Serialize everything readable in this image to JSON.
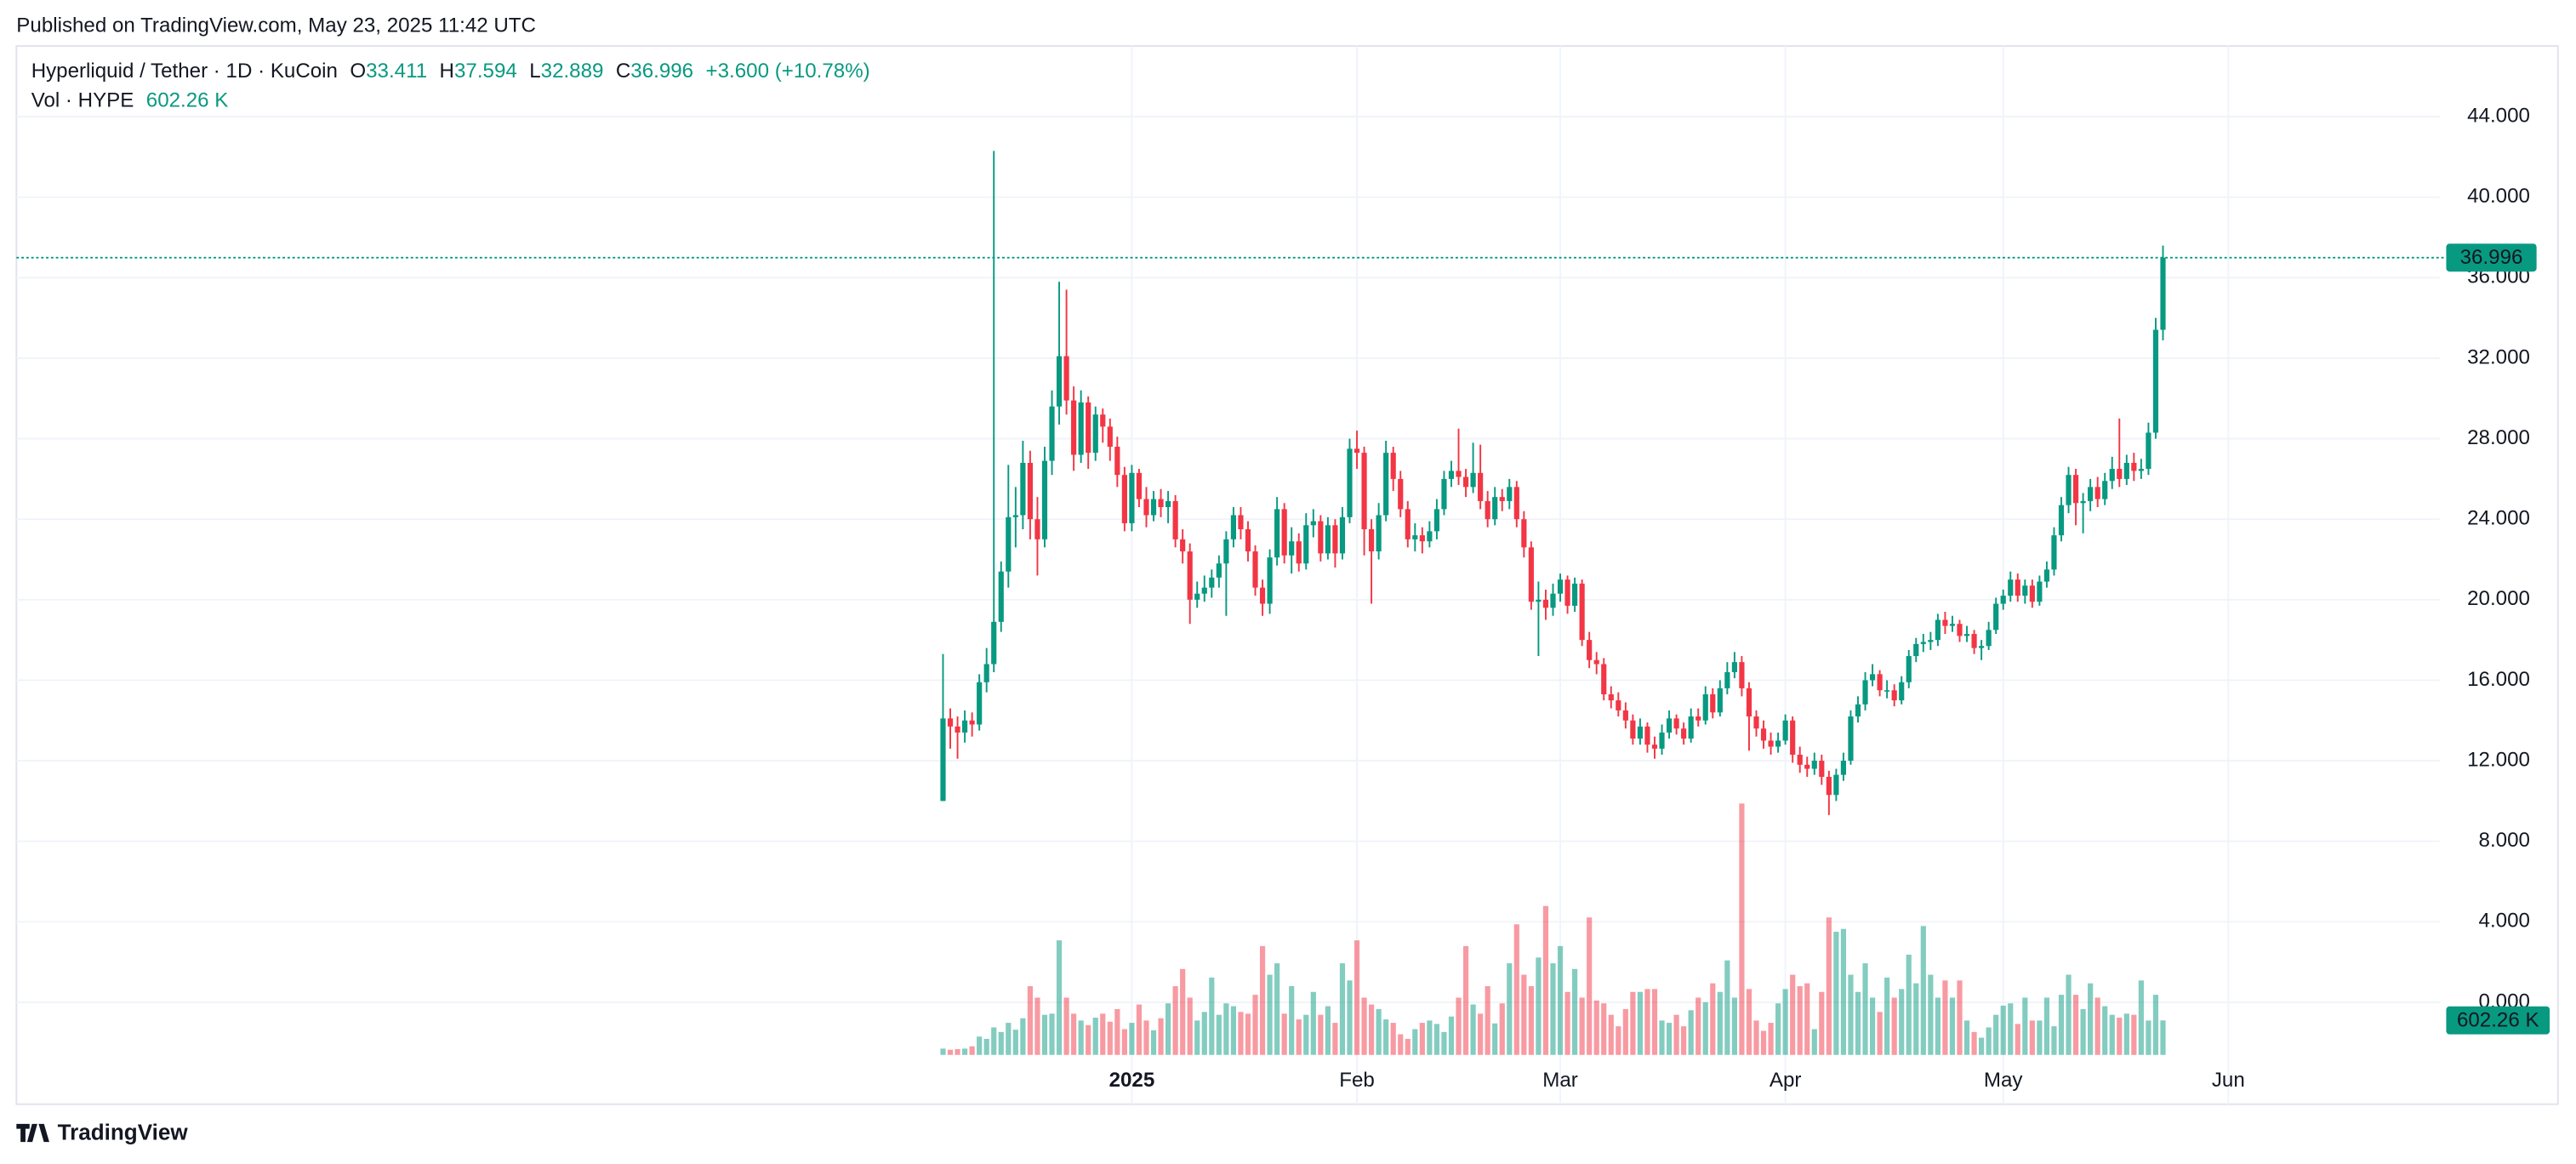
{
  "published": "Published on TradingView.com, May 23, 2025 11:42 UTC",
  "brand": "TradingView",
  "chart_data": {
    "type": "candlestick",
    "symbol": "Hyperliquid / Tether · 1D · KuCoin",
    "ohlc_labels": [
      "O",
      "H",
      "L",
      "C"
    ],
    "change": "+3.600 (+10.78%)",
    "volume_title": "Vol · HYPE",
    "last_volume_label": "602.26 K",
    "up_color": "#089981",
    "down_color": "#f23645",
    "xlim": [
      -127.6,
      206.1
    ],
    "xticks": [
      {
        "value": 26,
        "label": "2025"
      },
      {
        "value": 57,
        "label": "Feb"
      },
      {
        "value": 85,
        "label": "Mar"
      },
      {
        "value": 116,
        "label": "Apr"
      },
      {
        "value": 146,
        "label": "May"
      },
      {
        "value": 177,
        "label": "Jun"
      }
    ],
    "ylim": [
      -2.86,
      47.51
    ],
    "yticks": [
      {
        "value": 0,
        "label": "0.000"
      },
      {
        "value": 4,
        "label": "4.000"
      },
      {
        "value": 8,
        "label": "8.000"
      },
      {
        "value": 12,
        "label": "12.000"
      },
      {
        "value": 16,
        "label": "16.000"
      },
      {
        "value": 20,
        "label": "20.000"
      },
      {
        "value": 24,
        "label": "24.000"
      },
      {
        "value": 28,
        "label": "28.000"
      },
      {
        "value": 32,
        "label": "32.000"
      },
      {
        "value": 36,
        "label": "36.000"
      },
      {
        "value": 40,
        "label": "40.000"
      },
      {
        "value": 44,
        "label": "44.000"
      }
    ],
    "grid": true,
    "ohlc": [
      [
        10.0,
        17.3,
        10.0,
        14.1
      ],
      [
        14.1,
        14.6,
        12.6,
        13.7
      ],
      [
        13.7,
        14.2,
        12.1,
        13.4
      ],
      [
        13.4,
        14.5,
        12.9,
        14.0
      ],
      [
        14.0,
        14.4,
        13.2,
        13.8
      ],
      [
        13.8,
        16.3,
        13.5,
        15.9
      ],
      [
        15.9,
        17.6,
        15.4,
        16.8
      ],
      [
        16.8,
        42.3,
        16.4,
        18.9
      ],
      [
        18.9,
        21.9,
        18.4,
        21.4
      ],
      [
        21.4,
        26.7,
        20.6,
        24.1
      ],
      [
        24.1,
        25.6,
        22.6,
        24.2
      ],
      [
        24.2,
        27.9,
        23.5,
        26.8
      ],
      [
        26.8,
        27.4,
        23.0,
        24.0
      ],
      [
        24.0,
        25.1,
        21.2,
        23.0
      ],
      [
        23.0,
        27.6,
        22.6,
        26.9
      ],
      [
        26.9,
        30.4,
        26.2,
        29.6
      ],
      [
        29.6,
        35.8,
        28.7,
        32.1
      ],
      [
        32.1,
        35.4,
        29.2,
        29.9
      ],
      [
        29.9,
        30.6,
        26.4,
        27.2
      ],
      [
        27.2,
        30.4,
        26.8,
        29.8
      ],
      [
        29.8,
        30.1,
        26.5,
        27.3
      ],
      [
        27.3,
        29.6,
        26.9,
        29.2
      ],
      [
        29.2,
        29.5,
        27.8,
        28.6
      ],
      [
        28.6,
        29.0,
        26.9,
        27.6
      ],
      [
        27.6,
        28.1,
        25.6,
        26.2
      ],
      [
        26.2,
        26.6,
        23.4,
        23.8
      ],
      [
        23.8,
        26.7,
        23.4,
        26.3
      ],
      [
        26.3,
        26.5,
        24.6,
        25.0
      ],
      [
        25.0,
        25.6,
        23.6,
        24.2
      ],
      [
        24.2,
        25.4,
        23.9,
        25.0
      ],
      [
        25.0,
        25.5,
        24.1,
        24.6
      ],
      [
        24.6,
        25.4,
        23.8,
        24.9
      ],
      [
        24.9,
        25.2,
        22.6,
        23.0
      ],
      [
        23.0,
        23.5,
        21.8,
        22.4
      ],
      [
        22.4,
        22.8,
        18.8,
        20.0
      ],
      [
        20.0,
        20.9,
        19.6,
        20.3
      ],
      [
        20.3,
        21.2,
        19.9,
        20.6
      ],
      [
        20.6,
        21.5,
        20.1,
        21.1
      ],
      [
        21.1,
        22.2,
        20.6,
        21.8
      ],
      [
        21.8,
        23.4,
        19.2,
        23.0
      ],
      [
        23.0,
        24.6,
        22.6,
        24.2
      ],
      [
        24.2,
        24.6,
        23.0,
        23.5
      ],
      [
        23.5,
        23.9,
        21.9,
        22.4
      ],
      [
        22.4,
        22.7,
        20.2,
        20.6
      ],
      [
        20.6,
        21.0,
        19.2,
        19.8
      ],
      [
        19.8,
        22.5,
        19.3,
        22.1
      ],
      [
        22.1,
        25.1,
        21.7,
        24.5
      ],
      [
        24.5,
        24.8,
        21.8,
        22.2
      ],
      [
        22.2,
        23.6,
        21.3,
        22.9
      ],
      [
        22.9,
        23.3,
        21.4,
        21.8
      ],
      [
        21.8,
        24.3,
        21.5,
        23.7
      ],
      [
        23.7,
        24.5,
        23.1,
        23.9
      ],
      [
        23.9,
        24.2,
        21.9,
        22.3
      ],
      [
        22.3,
        24.1,
        22.0,
        23.7
      ],
      [
        23.7,
        24.0,
        21.6,
        22.3
      ],
      [
        22.3,
        24.6,
        22.0,
        24.1
      ],
      [
        24.1,
        28.0,
        23.8,
        27.5
      ],
      [
        27.5,
        28.4,
        26.5,
        27.3
      ],
      [
        27.3,
        27.6,
        22.2,
        23.5
      ],
      [
        23.5,
        24.0,
        19.8,
        22.4
      ],
      [
        22.4,
        24.8,
        22.0,
        24.2
      ],
      [
        24.2,
        27.9,
        23.9,
        27.3
      ],
      [
        27.3,
        27.6,
        25.4,
        26.0
      ],
      [
        26.0,
        26.4,
        24.1,
        24.5
      ],
      [
        24.5,
        24.9,
        22.6,
        23.0
      ],
      [
        23.0,
        23.8,
        22.4,
        23.2
      ],
      [
        23.2,
        23.6,
        22.3,
        22.9
      ],
      [
        22.9,
        23.9,
        22.6,
        23.4
      ],
      [
        23.4,
        25.0,
        23.0,
        24.5
      ],
      [
        24.5,
        26.4,
        24.2,
        26.0
      ],
      [
        26.0,
        26.9,
        25.6,
        26.4
      ],
      [
        26.4,
        28.5,
        25.7,
        26.1
      ],
      [
        26.1,
        26.5,
        25.1,
        25.6
      ],
      [
        25.6,
        27.8,
        25.3,
        26.3
      ],
      [
        26.3,
        27.7,
        24.5,
        24.9
      ],
      [
        24.9,
        25.4,
        23.6,
        24.0
      ],
      [
        24.0,
        25.6,
        23.7,
        25.1
      ],
      [
        25.1,
        25.5,
        24.4,
        24.9
      ],
      [
        24.9,
        26.0,
        24.5,
        25.6
      ],
      [
        25.6,
        25.9,
        23.6,
        24.0
      ],
      [
        24.0,
        24.4,
        22.1,
        22.6
      ],
      [
        22.6,
        22.9,
        19.5,
        19.9
      ],
      [
        19.9,
        20.9,
        17.2,
        20.0
      ],
      [
        20.0,
        20.5,
        19.0,
        19.6
      ],
      [
        19.6,
        20.8,
        19.2,
        20.3
      ],
      [
        20.3,
        21.3,
        19.9,
        21.0
      ],
      [
        21.0,
        21.2,
        19.3,
        19.7
      ],
      [
        19.7,
        21.1,
        19.4,
        20.8
      ],
      [
        20.8,
        21.0,
        17.7,
        18.0
      ],
      [
        18.0,
        18.4,
        16.6,
        17.0
      ],
      [
        17.0,
        17.4,
        16.3,
        16.8
      ],
      [
        16.8,
        17.1,
        15.0,
        15.3
      ],
      [
        15.3,
        15.7,
        14.6,
        15.0
      ],
      [
        15.0,
        15.4,
        14.2,
        14.5
      ],
      [
        14.5,
        14.9,
        13.6,
        14.0
      ],
      [
        14.0,
        14.3,
        12.8,
        13.1
      ],
      [
        13.1,
        14.1,
        12.8,
        13.7
      ],
      [
        13.7,
        13.9,
        12.4,
        12.8
      ],
      [
        12.8,
        13.2,
        12.1,
        12.6
      ],
      [
        12.6,
        13.8,
        12.3,
        13.4
      ],
      [
        13.4,
        14.5,
        13.1,
        14.1
      ],
      [
        14.1,
        14.3,
        13.3,
        13.6
      ],
      [
        13.6,
        13.9,
        12.8,
        13.1
      ],
      [
        13.1,
        14.6,
        12.9,
        14.2
      ],
      [
        14.2,
        14.6,
        13.7,
        14.0
      ],
      [
        14.0,
        15.7,
        13.8,
        15.3
      ],
      [
        15.3,
        15.6,
        14.1,
        14.4
      ],
      [
        14.4,
        16.0,
        14.2,
        15.6
      ],
      [
        15.6,
        16.9,
        15.3,
        16.4
      ],
      [
        16.4,
        17.4,
        16.1,
        16.9
      ],
      [
        16.9,
        17.2,
        15.2,
        15.6
      ],
      [
        15.6,
        15.9,
        12.5,
        14.2
      ],
      [
        14.2,
        14.5,
        13.2,
        13.6
      ],
      [
        13.6,
        14.0,
        12.6,
        13.0
      ],
      [
        13.0,
        13.4,
        12.3,
        12.7
      ],
      [
        12.7,
        13.4,
        12.4,
        13.0
      ],
      [
        13.0,
        14.3,
        12.8,
        14.0
      ],
      [
        14.0,
        14.2,
        11.9,
        12.3
      ],
      [
        12.3,
        12.7,
        11.4,
        11.8
      ],
      [
        11.8,
        12.2,
        11.2,
        11.6
      ],
      [
        11.6,
        12.4,
        11.3,
        12.0
      ],
      [
        12.0,
        12.3,
        10.8,
        11.2
      ],
      [
        11.2,
        11.5,
        9.3,
        10.3
      ],
      [
        10.3,
        11.6,
        10.0,
        11.3
      ],
      [
        11.3,
        12.4,
        11.0,
        12.0
      ],
      [
        12.0,
        14.5,
        11.8,
        14.2
      ],
      [
        14.2,
        15.2,
        13.9,
        14.8
      ],
      [
        14.8,
        16.4,
        14.5,
        16.0
      ],
      [
        16.0,
        16.8,
        15.7,
        16.3
      ],
      [
        16.3,
        16.5,
        15.2,
        15.5
      ],
      [
        15.5,
        16.0,
        15.1,
        15.5
      ],
      [
        15.5,
        15.8,
        14.7,
        15.0
      ],
      [
        15.0,
        16.2,
        14.8,
        15.9
      ],
      [
        15.9,
        17.5,
        15.6,
        17.2
      ],
      [
        17.2,
        18.1,
        16.9,
        17.8
      ],
      [
        17.8,
        18.3,
        17.4,
        17.9
      ],
      [
        17.9,
        18.4,
        17.5,
        18.0
      ],
      [
        18.0,
        19.3,
        17.7,
        19.0
      ],
      [
        19.0,
        19.4,
        18.3,
        18.7
      ],
      [
        18.7,
        19.2,
        18.4,
        18.8
      ],
      [
        18.8,
        19.0,
        17.9,
        18.2
      ],
      [
        18.2,
        18.7,
        17.9,
        18.3
      ],
      [
        18.3,
        18.5,
        17.3,
        17.6
      ],
      [
        17.6,
        18.0,
        17.0,
        17.7
      ],
      [
        17.7,
        18.9,
        17.5,
        18.5
      ],
      [
        18.5,
        20.1,
        18.3,
        19.8
      ],
      [
        19.8,
        20.5,
        19.5,
        20.2
      ],
      [
        20.2,
        21.4,
        19.9,
        21.0
      ],
      [
        21.0,
        21.3,
        19.9,
        20.2
      ],
      [
        20.2,
        21.0,
        19.8,
        20.7
      ],
      [
        20.7,
        21.0,
        19.6,
        19.9
      ],
      [
        19.9,
        21.2,
        19.7,
        20.9
      ],
      [
        20.9,
        21.9,
        20.6,
        21.5
      ],
      [
        21.5,
        23.6,
        21.2,
        23.2
      ],
      [
        23.2,
        25.1,
        22.9,
        24.7
      ],
      [
        24.7,
        26.6,
        24.3,
        26.2
      ],
      [
        26.2,
        26.5,
        23.7,
        24.8
      ],
      [
        24.8,
        25.3,
        23.3,
        24.9
      ],
      [
        24.9,
        26.0,
        24.4,
        25.6
      ],
      [
        25.6,
        26.1,
        24.6,
        25.0
      ],
      [
        25.0,
        26.3,
        24.7,
        25.9
      ],
      [
        25.9,
        27.1,
        25.5,
        26.5
      ],
      [
        26.5,
        29.0,
        25.6,
        26.0
      ],
      [
        26.0,
        27.2,
        25.7,
        26.8
      ],
      [
        26.8,
        27.3,
        25.9,
        26.4
      ],
      [
        26.4,
        27.0,
        26.0,
        26.5
      ],
      [
        26.5,
        28.8,
        26.2,
        28.3
      ],
      [
        28.3,
        34.0,
        28.0,
        33.411
      ],
      [
        33.411,
        37.594,
        32.889,
        36.996
      ]
    ],
    "volume": [
      110,
      90,
      100,
      110,
      150,
      320,
      280,
      480,
      400,
      560,
      440,
      640,
      1200,
      1000,
      700,
      720,
      2000,
      1000,
      720,
      600,
      520,
      650,
      720,
      580,
      800,
      450,
      560,
      880,
      600,
      430,
      640,
      900,
      1200,
      1500,
      1000,
      600,
      750,
      1350,
      700,
      900,
      850,
      750,
      720,
      1050,
      1900,
      1400,
      1600,
      720,
      1200,
      620,
      700,
      1100,
      700,
      850,
      560,
      1600,
      1300,
      2000,
      1000,
      880,
      800,
      620,
      560,
      360,
      280,
      450,
      560,
      600,
      540,
      400,
      670,
      1000,
      1900,
      880,
      720,
      1200,
      550,
      900,
      1600,
      2280,
      1400,
      1200,
      1700,
      2600,
      1600,
      1900,
      1100,
      1500,
      1000,
      2400,
      950,
      900,
      700,
      500,
      800,
      1100,
      1100,
      1150,
      1150,
      600,
      560,
      700,
      500,
      780,
      1000,
      920,
      1250,
      1100,
      1650,
      1000,
      4390,
      1150,
      600,
      420,
      560,
      900,
      1150,
      1400,
      1200,
      1250,
      450,
      1100,
      2400,
      2150,
      2200,
      1400,
      1100,
      1600,
      1000,
      750,
      1350,
      1000,
      1150,
      1750,
      1250,
      2250,
      1400,
      1000,
      1300,
      1000,
      1300,
      600,
      400,
      300,
      480,
      700,
      860,
      900,
      540,
      1000,
      600,
      600,
      1000,
      500,
      1050,
      1400,
      1050,
      800,
      1250,
      1000,
      850,
      700,
      650,
      720,
      700,
      1300,
      600,
      1050,
      602.26
    ]
  }
}
